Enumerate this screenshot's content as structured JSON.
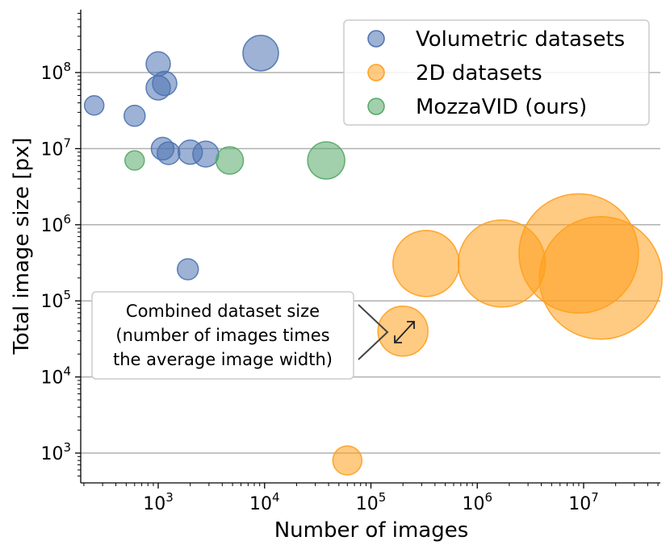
{
  "chart_data": {
    "type": "scatter",
    "xlabel": "Number of images",
    "ylabel": "Total image size [px]",
    "xscale": "log",
    "yscale": "log",
    "xlim": [
      200,
      50000000
    ],
    "ylim": [
      400,
      700000000
    ],
    "grid": "horizontal",
    "legend_position": "top-right",
    "x_ticks": [
      {
        "base": "10",
        "exp": "3",
        "value": 1000
      },
      {
        "base": "10",
        "exp": "4",
        "value": 10000
      },
      {
        "base": "10",
        "exp": "5",
        "value": 100000
      },
      {
        "base": "10",
        "exp": "6",
        "value": 1000000
      },
      {
        "base": "10",
        "exp": "7",
        "value": 10000000
      }
    ],
    "y_ticks": [
      {
        "base": "10",
        "exp": "3",
        "value": 1000
      },
      {
        "base": "10",
        "exp": "4",
        "value": 10000
      },
      {
        "base": "10",
        "exp": "5",
        "value": 100000
      },
      {
        "base": "10",
        "exp": "6",
        "value": 1000000
      },
      {
        "base": "10",
        "exp": "7",
        "value": 10000000
      },
      {
        "base": "10",
        "exp": "8",
        "value": 100000000
      }
    ],
    "series": [
      {
        "name": "Volumetric datasets",
        "color": "#4c72b0",
        "points": [
          {
            "x": 250,
            "y": 37000000,
            "size": 1.2
          },
          {
            "x": 600,
            "y": 27000000,
            "size": 1.3
          },
          {
            "x": 1000,
            "y": 130000000,
            "size": 1.5
          },
          {
            "x": 1000,
            "y": 63000000,
            "size": 1.5
          },
          {
            "x": 1150,
            "y": 72000000,
            "size": 1.5
          },
          {
            "x": 1100,
            "y": 10000000,
            "size": 1.4
          },
          {
            "x": 1250,
            "y": 8700000,
            "size": 1.4
          },
          {
            "x": 2000,
            "y": 9000000,
            "size": 1.5
          },
          {
            "x": 2800,
            "y": 8500000,
            "size": 1.6
          },
          {
            "x": 9200,
            "y": 180000000,
            "size": 2.2
          },
          {
            "x": 1900,
            "y": 260000,
            "size": 1.3
          }
        ]
      },
      {
        "name": "2D datasets",
        "color": "#ff9f1c",
        "points": [
          {
            "x": 60000,
            "y": 800,
            "size": 1.8
          },
          {
            "x": 200000,
            "y": 40000,
            "size": 3.1
          },
          {
            "x": 330000,
            "y": 310000,
            "size": 4.1
          },
          {
            "x": 1700000,
            "y": 310000,
            "size": 5.4
          },
          {
            "x": 9000000,
            "y": 420000,
            "size": 7.4
          },
          {
            "x": 14500000,
            "y": 200000,
            "size": 7.6
          }
        ]
      },
      {
        "name": "MozzaVID (ours)",
        "color": "#55a868",
        "points": [
          {
            "x": 600,
            "y": 7000000,
            "size": 1.2
          },
          {
            "x": 4700,
            "y": 7000000,
            "size": 1.7
          },
          {
            "x": 38000,
            "y": 7000000,
            "size": 2.3
          }
        ]
      }
    ],
    "annotation": {
      "lines": [
        "Combined dataset size",
        "(number of images times",
        "the average image width)"
      ],
      "target": {
        "x": 200000,
        "y": 40000
      }
    }
  }
}
